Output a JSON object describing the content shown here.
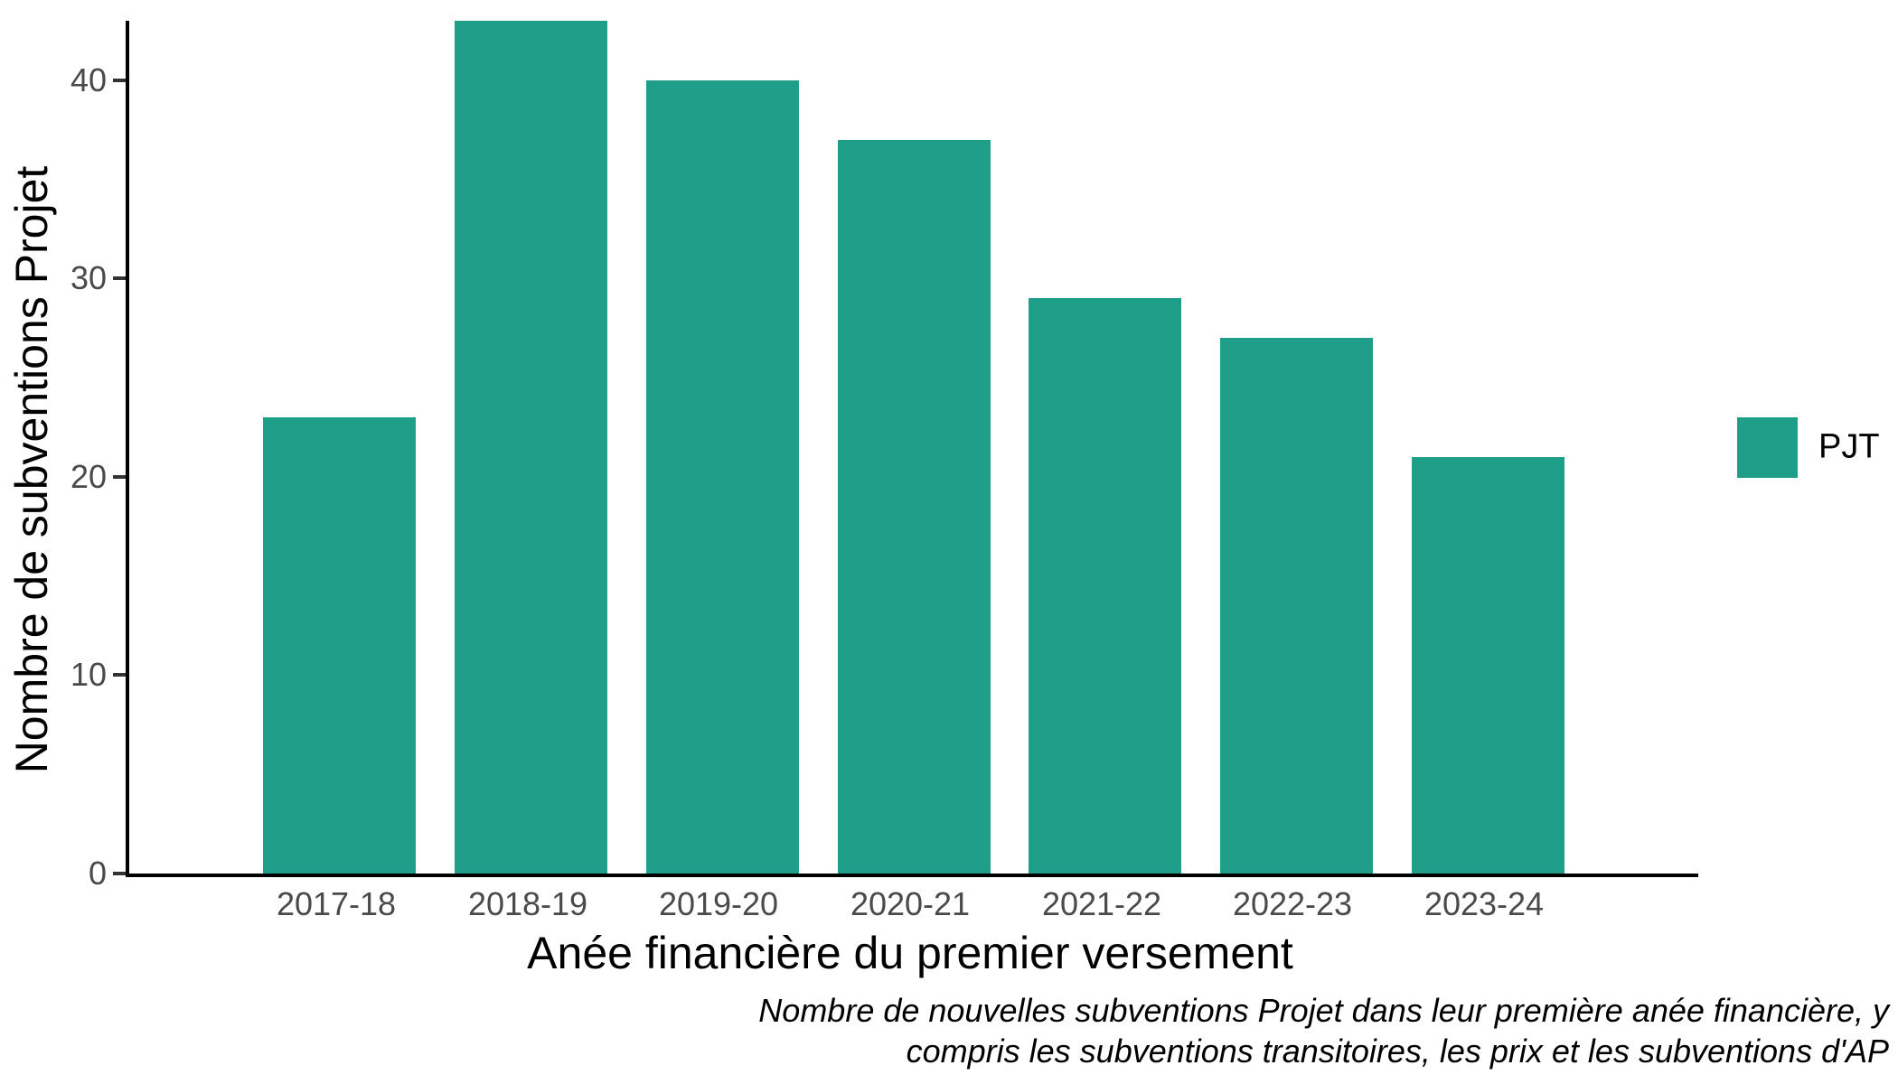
{
  "chart_data": {
    "type": "bar",
    "categories": [
      "2017-18",
      "2018-19",
      "2019-20",
      "2020-21",
      "2021-22",
      "2022-23",
      "2023-24"
    ],
    "series": [
      {
        "name": "PJT",
        "values": [
          23,
          43,
          40,
          37,
          29,
          27,
          21
        ]
      }
    ],
    "title": "",
    "xlabel": "Anée financière du premier versement",
    "ylabel": "Nombre de subventions Projet",
    "yticks": [
      0,
      10,
      20,
      30,
      40
    ],
    "ylim": [
      0,
      43
    ],
    "grid": false,
    "legend_position": "right",
    "legend": [
      {
        "label": "PJT",
        "color": "#1f9e8a"
      }
    ],
    "caption_lines": [
      "Nombre de nouvelles subventions Projet dans leur première anée financière, y",
      "compris les subventions transitoires, les prix et les subventions d'AP"
    ],
    "colors": {
      "bar": "#1f9e8a",
      "axis_line": "#000000",
      "tick_label": "#4a4a4a",
      "title_text": "#000000",
      "background": "#ffffff"
    }
  }
}
